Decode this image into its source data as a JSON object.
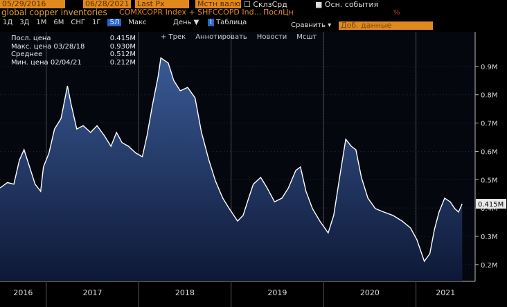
{
  "header": {
    "start_date": "05/29/2016",
    "end_date": "06/28/2021",
    "field": "Last Px",
    "currency": "Мстн валют",
    "avg_toggle": "СклзСрд",
    "events_toggle": "Осн. события",
    "security": "global copper inventories",
    "tickers": "COMXCOPR Index + SHFCCOPD Ind…",
    "field_short": "ПослЦн",
    "percent": "%"
  },
  "toolbar": {
    "periods": [
      "1Д",
      "3Д",
      "1М",
      "6М",
      "СНГ",
      "1Г",
      "5Л",
      "Макс"
    ],
    "frequency": "День ▼",
    "table": "Таблица",
    "compare": "Сравнить ▾",
    "add_data": "Доб. данные",
    "tools": [
      "+ Трек",
      "Аннотировать",
      "Новости",
      "Мсшт"
    ]
  },
  "chart_data": {
    "type": "line",
    "stats": [
      "Посл. цена",
      "Макс. цена 03/28/18",
      "Среднее",
      "Мин. цена 02/04/21"
    ],
    "stats_labels": [
      "0.415M",
      "0.930M",
      "0.512M",
      "0.212M"
    ],
    "x": [
      2016.5,
      2016.58,
      2016.65,
      2016.71,
      2016.76,
      2016.82,
      2016.88,
      2016.94,
      2016.97,
      2017.03,
      2017.09,
      2017.16,
      2017.23,
      2017.27,
      2017.33,
      2017.4,
      2017.48,
      2017.55,
      2017.63,
      2017.7,
      2017.76,
      2017.82,
      2017.89,
      2017.97,
      2018.04,
      2018.09,
      2018.15,
      2018.21,
      2018.24,
      2018.32,
      2018.38,
      2018.45,
      2018.53,
      2018.61,
      2018.68,
      2018.76,
      2018.83,
      2018.91,
      2018.98,
      2019.07,
      2019.13,
      2019.19,
      2019.24,
      2019.32,
      2019.39,
      2019.47,
      2019.55,
      2019.62,
      2019.7,
      2019.75,
      2019.81,
      2019.88,
      2019.96,
      2020.05,
      2020.11,
      2020.18,
      2020.24,
      2020.3,
      2020.35,
      2020.41,
      2020.48,
      2020.56,
      2020.65,
      2020.75,
      2020.85,
      2020.94,
      2021.01,
      2021.09,
      2021.15,
      2021.2,
      2021.25,
      2021.31,
      2021.37,
      2021.42,
      2021.46,
      2021.5
    ],
    "series": [
      {
        "color": "#ffffff",
        "values": [
          0.471,
          0.49,
          0.484,
          0.569,
          0.606,
          0.545,
          0.484,
          0.459,
          0.545,
          0.594,
          0.679,
          0.716,
          0.831,
          0.765,
          0.679,
          0.691,
          0.667,
          0.691,
          0.655,
          0.618,
          0.667,
          0.631,
          0.618,
          0.594,
          0.581,
          0.655,
          0.765,
          0.863,
          0.93,
          0.912,
          0.85,
          0.814,
          0.826,
          0.789,
          0.667,
          0.569,
          0.496,
          0.435,
          0.398,
          0.354,
          0.374,
          0.435,
          0.484,
          0.508,
          0.471,
          0.422,
          0.435,
          0.471,
          0.533,
          0.545,
          0.459,
          0.398,
          0.354,
          0.312,
          0.374,
          0.52,
          0.643,
          0.618,
          0.606,
          0.508,
          0.435,
          0.398,
          0.386,
          0.374,
          0.354,
          0.33,
          0.288,
          0.212,
          0.239,
          0.325,
          0.386,
          0.435,
          0.422,
          0.398,
          0.386,
          0.415
        ]
      }
    ],
    "last_label": "0.415M",
    "xlim": [
      2016.5,
      2021.64
    ],
    "xticks": [
      {
        "value": 2016.75,
        "label": "2016"
      },
      {
        "value": 2017.5,
        "label": "2017"
      },
      {
        "value": 2018.5,
        "label": "2018"
      },
      {
        "value": 2019.5,
        "label": "2019"
      },
      {
        "value": 2020.5,
        "label": "2020"
      },
      {
        "value": 2021.32,
        "label": "2021"
      }
    ],
    "ylim": [
      0.141,
      1.022
    ],
    "yticks": [
      {
        "value": 0.2,
        "label": "0.2M"
      },
      {
        "value": 0.3,
        "label": "0.3M"
      },
      {
        "value": 0.4,
        "label": "0.4M"
      },
      {
        "value": 0.5,
        "label": "0.5M"
      },
      {
        "value": 0.6,
        "label": "0.6M"
      },
      {
        "value": 0.7,
        "label": "0.7M"
      },
      {
        "value": 0.8,
        "label": "0.8M"
      },
      {
        "value": 0.9,
        "label": "0.9M"
      }
    ],
    "grid": true
  }
}
